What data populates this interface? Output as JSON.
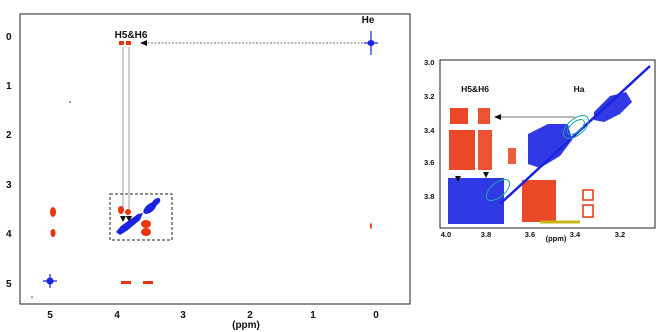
{
  "chart_data": [
    {
      "type": "scatter",
      "panel": "main-spectrum",
      "xlabel": "(ppm)",
      "ylabel": "",
      "xlim": [
        5.4,
        -0.4
      ],
      "ylim": [
        -0.5,
        5.5
      ],
      "x_ticks": [
        5,
        4,
        3,
        2,
        1,
        0
      ],
      "y_ticks": [
        0,
        1,
        2,
        3,
        4,
        5
      ],
      "grid": false,
      "annotations": [
        "He",
        "H5&H6"
      ],
      "colors": {
        "positive": "#1a23e0",
        "negative": "#e8350f"
      },
      "series": [
        {
          "color": "blue",
          "points": [
            [
              0.1,
              0.1
            ],
            [
              3.9,
              3.9
            ],
            [
              3.75,
              3.75
            ],
            [
              3.6,
              3.6
            ],
            [
              3.5,
              3.5
            ],
            [
              4.95,
              4.95
            ]
          ]
        },
        {
          "color": "red",
          "points": [
            [
              3.88,
              0.05
            ],
            [
              3.78,
              0.05
            ],
            [
              4.95,
              3.55
            ],
            [
              4.95,
              3.95
            ],
            [
              3.9,
              3.5
            ],
            [
              3.8,
              3.55
            ],
            [
              3.55,
              3.72
            ],
            [
              3.55,
              3.88
            ],
            [
              3.85,
              4.95
            ],
            [
              3.72,
              4.95
            ],
            [
              3.52,
              4.95
            ],
            [
              0.1,
              3.83
            ]
          ]
        }
      ]
    },
    {
      "type": "scatter",
      "panel": "inset-zoom",
      "xlabel": "(ppm)",
      "ylabel": "",
      "xlim": [
        4.0,
        3.05
      ],
      "ylim": [
        2.98,
        3.98
      ],
      "x_ticks": [
        4.0,
        3.8,
        3.6,
        3.4,
        3.2
      ],
      "y_ticks": [
        3.0,
        3.2,
        3.4,
        3.6,
        3.8
      ],
      "grid": false,
      "annotations": [
        "H5&H6",
        "Ha"
      ],
      "colors": {
        "positive": "#1a23e0",
        "negative": "#e8350f",
        "contour": "#16a5a0"
      }
    }
  ],
  "labels": {
    "main_x_ticks": [
      "5",
      "4",
      "3",
      "2",
      "1",
      "0"
    ],
    "main_y_ticks": [
      "0",
      "1",
      "2",
      "3",
      "4",
      "5"
    ],
    "main_xlabel": "(ppm)",
    "main_ann_he": "He",
    "main_ann_h56": "H5&H6",
    "inset_x_ticks": [
      "4.0",
      "3.8",
      "3.6",
      "3.4",
      "3.2"
    ],
    "inset_y_ticks": [
      "3.0",
      "3.2",
      "3.4",
      "3.6",
      "3.8"
    ],
    "inset_xlabel": "(ppm)",
    "inset_ann_h56": "H5&H6",
    "inset_ann_ha": "Ha"
  }
}
